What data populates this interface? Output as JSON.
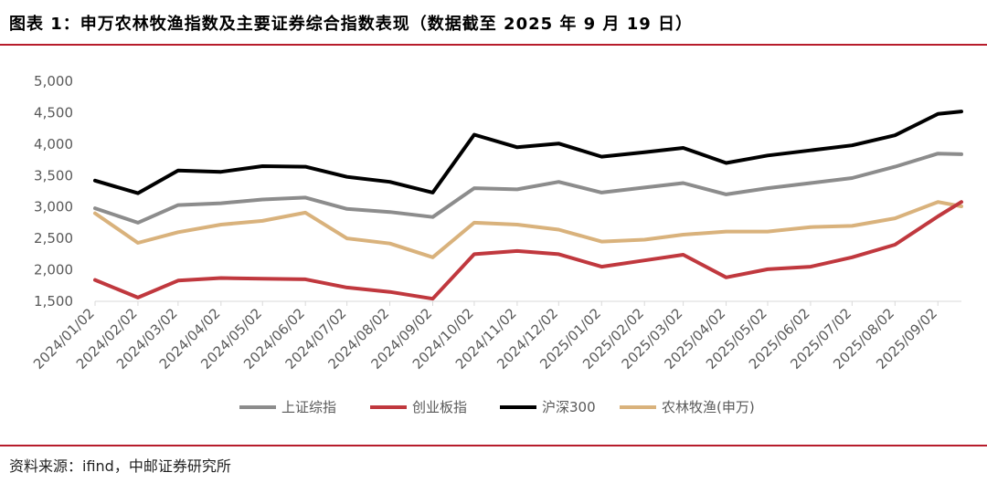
{
  "header": {
    "title": "图表 1：申万农林牧渔指数及主要证券综合指数表现（数据截至 2025 年 9 月 19 日）"
  },
  "footer": {
    "source": "资料来源：ifind，中邮证券研究所"
  },
  "chart_data": {
    "type": "line",
    "x": [
      "2024/01/02",
      "2024/02/02",
      "2024/03/02",
      "2024/04/02",
      "2024/05/02",
      "2024/06/02",
      "2024/07/02",
      "2024/08/02",
      "2024/09/02",
      "2024/10/02",
      "2024/11/02",
      "2024/12/02",
      "2025/01/02",
      "2025/02/02",
      "2025/03/02",
      "2025/04/02",
      "2025/05/02",
      "2025/06/02",
      "2025/07/02",
      "2025/08/02",
      "2025/09/02",
      "2025/09/19"
    ],
    "ylim": [
      1500,
      5000
    ],
    "yticks": [
      1500,
      2000,
      2500,
      3000,
      3500,
      4000,
      4500,
      5000
    ],
    "ytick_labels": [
      "1,500",
      "2,000",
      "2,500",
      "3,000",
      "3,500",
      "4,000",
      "4,500",
      "5,000"
    ],
    "xtick_labels": [
      "2024/01/02",
      "2024/02/02",
      "2024/03/02",
      "2024/04/02",
      "2024/05/02",
      "2024/06/02",
      "2024/07/02",
      "2024/08/02",
      "2024/09/02",
      "2024/10/02",
      "2024/11/02",
      "2024/12/02",
      "2025/01/02",
      "2025/02/02",
      "2025/03/02",
      "2025/04/02",
      "2025/05/02",
      "2025/06/02",
      "2025/07/02",
      "2025/08/02",
      "2025/09/02"
    ],
    "series": [
      {
        "name": "上证综指",
        "color": "#8c8c8c",
        "values": [
          2980,
          2750,
          3030,
          3060,
          3120,
          3150,
          2970,
          2920,
          2840,
          3300,
          3280,
          3400,
          3230,
          3310,
          3380,
          3200,
          3300,
          3380,
          3460,
          3640,
          3850,
          3840
        ]
      },
      {
        "name": "创业板指",
        "color": "#c0383e",
        "values": [
          1840,
          1560,
          1830,
          1870,
          1860,
          1850,
          1720,
          1650,
          1540,
          2250,
          2300,
          2250,
          2050,
          2150,
          2240,
          1880,
          2010,
          2050,
          2200,
          2400,
          2850,
          3080
        ]
      },
      {
        "name": "沪深300",
        "color": "#000000",
        "values": [
          3420,
          3220,
          3580,
          3560,
          3650,
          3640,
          3480,
          3400,
          3230,
          4150,
          3950,
          4010,
          3800,
          3870,
          3940,
          3700,
          3820,
          3900,
          3980,
          4140,
          4480,
          4520
        ]
      },
      {
        "name": "农林牧渔(申万)",
        "color": "#d9b27c",
        "values": [
          2900,
          2430,
          2600,
          2720,
          2780,
          2910,
          2500,
          2420,
          2200,
          2750,
          2720,
          2640,
          2450,
          2480,
          2560,
          2610,
          2610,
          2680,
          2700,
          2820,
          3080,
          3010
        ]
      }
    ]
  }
}
